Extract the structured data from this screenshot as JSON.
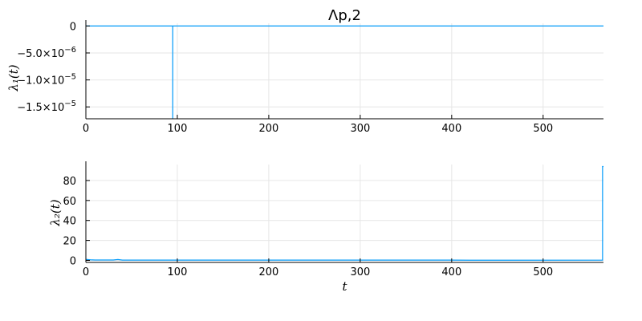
{
  "chart_data": [
    {
      "type": "line",
      "title": "Λp,2",
      "ylabel": "λ₁(t)",
      "xlabel": "",
      "xlim": [
        0,
        566
      ],
      "ylim": [
        -1.72e-05,
        5e-07
      ],
      "xticks": [
        0,
        100,
        200,
        300,
        400,
        500
      ],
      "xtick_labels": [
        "0",
        "100",
        "200",
        "300",
        "400",
        "500"
      ],
      "yticks": [
        0,
        -5e-06,
        -1e-05,
        -1.5e-05
      ],
      "ytick_labels": [
        {
          "base": "0",
          "exp": ""
        },
        {
          "base": "−5.0×10",
          "exp": "−6"
        },
        {
          "base": "−1.0×10",
          "exp": "−5"
        },
        {
          "base": "−1.5×10",
          "exp": "−5"
        }
      ],
      "grid": true,
      "legend": false,
      "series": [
        {
          "color": "#009AFA",
          "x": [
            0,
            95,
            95,
            95,
            566
          ],
          "y": [
            0,
            0,
            -1.72e-05,
            0,
            0
          ]
        }
      ]
    },
    {
      "type": "line",
      "title": "",
      "ylabel": "λ₂(t)",
      "xlabel": "t",
      "xlim": [
        0,
        566
      ],
      "ylim": [
        -2,
        96
      ],
      "xticks": [
        0,
        100,
        200,
        300,
        400,
        500
      ],
      "xtick_labels": [
        "0",
        "100",
        "200",
        "300",
        "400",
        "500"
      ],
      "yticks": [
        0,
        20,
        40,
        60,
        80
      ],
      "ytick_labels": [
        {
          "base": "0",
          "exp": ""
        },
        {
          "base": "20",
          "exp": ""
        },
        {
          "base": "40",
          "exp": ""
        },
        {
          "base": "60",
          "exp": ""
        },
        {
          "base": "80",
          "exp": ""
        }
      ],
      "grid": true,
      "legend": false,
      "series": [
        {
          "color": "#009AFA",
          "x": [
            0,
            5,
            10,
            30,
            35,
            40,
            400,
            420,
            565,
            565,
            566
          ],
          "y": [
            1,
            0.6,
            0.4,
            0.4,
            0.9,
            0.3,
            0.3,
            0.2,
            0.3,
            94,
            94
          ]
        }
      ]
    }
  ]
}
